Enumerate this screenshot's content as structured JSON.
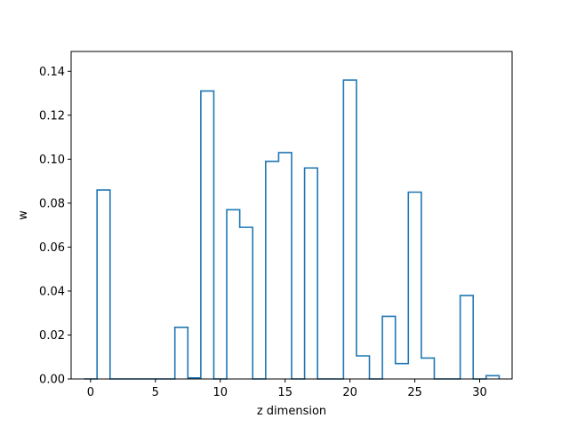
{
  "chart_data": {
    "type": "step",
    "title": "",
    "xlabel": "z dimension",
    "ylabel": "w",
    "xlim": [
      -1.5,
      32.5
    ],
    "ylim": [
      0,
      0.149
    ],
    "xticks": [
      0,
      5,
      10,
      15,
      20,
      25,
      30
    ],
    "yticks": [
      "0.00",
      "0.02",
      "0.04",
      "0.06",
      "0.08",
      "0.10",
      "0.12",
      "0.14"
    ],
    "grid": false,
    "line_color": "#1f77b4",
    "x": [
      0,
      1,
      2,
      3,
      4,
      5,
      6,
      7,
      8,
      9,
      10,
      11,
      12,
      13,
      14,
      15,
      16,
      17,
      18,
      19,
      20,
      21,
      22,
      23,
      24,
      25,
      26,
      27,
      28,
      29,
      30,
      31
    ],
    "values": [
      0.0,
      0.086,
      0.0,
      0.0,
      0.0,
      0.0,
      0.0,
      0.0235,
      0.0005,
      0.131,
      0.0,
      0.077,
      0.069,
      0.0,
      0.099,
      0.103,
      0.0,
      0.096,
      0.0,
      0.0,
      0.136,
      0.0105,
      0.0,
      0.0285,
      0.007,
      0.085,
      0.0095,
      0.0,
      0.0,
      0.038,
      0.0,
      0.0015
    ]
  }
}
